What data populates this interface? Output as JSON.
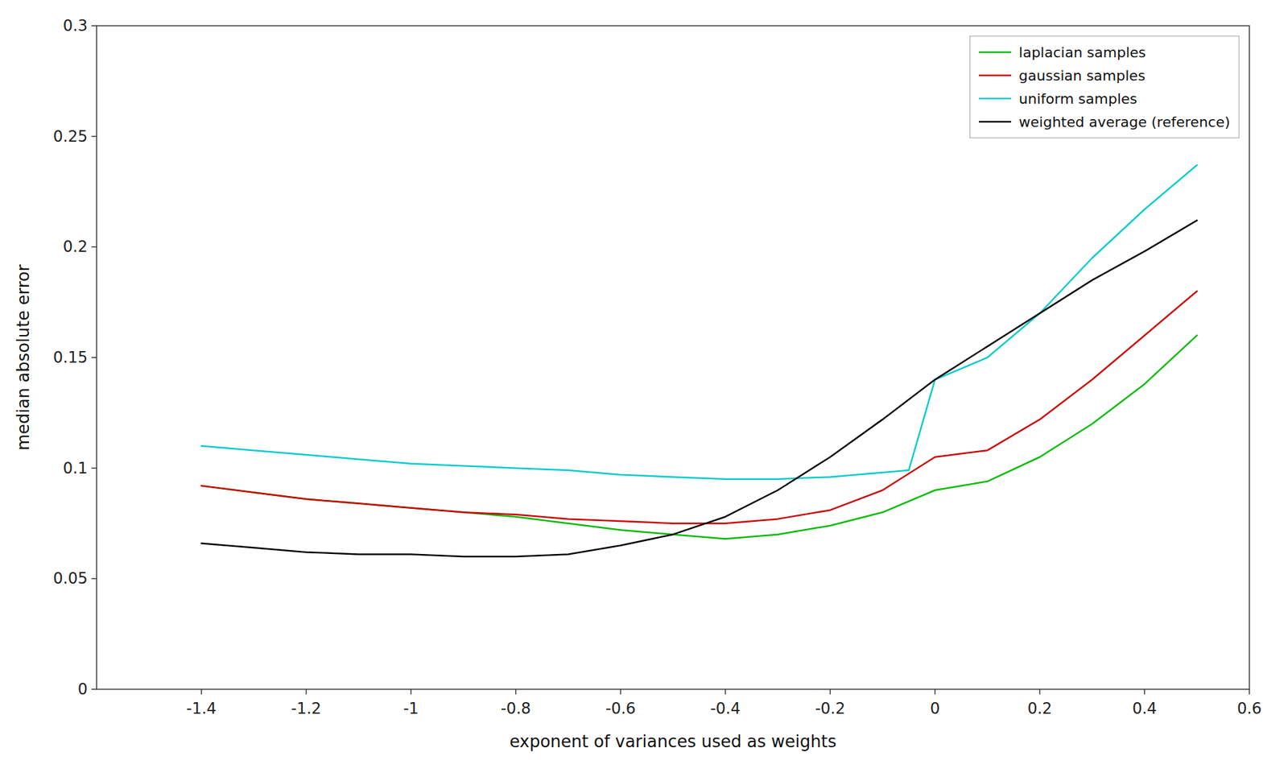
{
  "chart_data": {
    "type": "line",
    "xlabel": "exponent of variances used as weights",
    "ylabel": "median absolute error",
    "xlim": [
      -1.6,
      0.6
    ],
    "ylim": [
      0,
      0.3
    ],
    "xticks": [
      -1.4,
      -1.2,
      -1,
      -0.8,
      -0.6,
      -0.4,
      -0.2,
      0,
      0.2,
      0.4,
      0.6
    ],
    "yticks": [
      0,
      0.05,
      0.1,
      0.15,
      0.2,
      0.25,
      0.3
    ],
    "grid": false,
    "legend": "upper right",
    "series": [
      {
        "name": "laplacian samples",
        "color": "#00bb00",
        "x": [
          -1.4,
          -1.3,
          -1.2,
          -1.1,
          -1.0,
          -0.9,
          -0.8,
          -0.7,
          -0.6,
          -0.5,
          -0.4,
          -0.3,
          -0.2,
          -0.1,
          0.0,
          0.1,
          0.2,
          0.3,
          0.4,
          0.5
        ],
        "values": [
          0.092,
          0.089,
          0.086,
          0.084,
          0.082,
          0.08,
          0.078,
          0.075,
          0.072,
          0.07,
          0.068,
          0.07,
          0.074,
          0.08,
          0.09,
          0.094,
          0.105,
          0.12,
          0.138,
          0.16
        ]
      },
      {
        "name": "gaussian samples",
        "color": "#cc0000",
        "x": [
          -1.4,
          -1.3,
          -1.2,
          -1.1,
          -1.0,
          -0.9,
          -0.8,
          -0.7,
          -0.6,
          -0.5,
          -0.4,
          -0.3,
          -0.2,
          -0.1,
          0.0,
          0.1,
          0.2,
          0.3,
          0.4,
          0.5
        ],
        "values": [
          0.092,
          0.089,
          0.086,
          0.084,
          0.082,
          0.08,
          0.079,
          0.077,
          0.076,
          0.075,
          0.075,
          0.077,
          0.081,
          0.09,
          0.105,
          0.108,
          0.122,
          0.14,
          0.16,
          0.18
        ]
      },
      {
        "name": "uniform samples",
        "color": "#00cccc",
        "x": [
          -1.4,
          -1.3,
          -1.2,
          -1.1,
          -1.0,
          -0.9,
          -0.8,
          -0.7,
          -0.6,
          -0.5,
          -0.4,
          -0.3,
          -0.2,
          -0.1,
          -0.05,
          0.0,
          0.1,
          0.2,
          0.3,
          0.4,
          0.5
        ],
        "values": [
          0.11,
          0.108,
          0.106,
          0.104,
          0.102,
          0.101,
          0.1,
          0.099,
          0.097,
          0.096,
          0.095,
          0.095,
          0.096,
          0.098,
          0.099,
          0.14,
          0.15,
          0.17,
          0.195,
          0.217,
          0.237
        ]
      },
      {
        "name": "weighted average (reference)",
        "color": "#000000",
        "x": [
          -1.4,
          -1.3,
          -1.2,
          -1.1,
          -1.0,
          -0.9,
          -0.8,
          -0.7,
          -0.6,
          -0.5,
          -0.4,
          -0.3,
          -0.2,
          -0.1,
          0.0,
          0.1,
          0.2,
          0.3,
          0.4,
          0.5
        ],
        "values": [
          0.066,
          0.064,
          0.062,
          0.061,
          0.061,
          0.06,
          0.06,
          0.061,
          0.065,
          0.07,
          0.078,
          0.09,
          0.105,
          0.122,
          0.14,
          0.155,
          0.17,
          0.185,
          0.198,
          0.212
        ]
      }
    ]
  }
}
